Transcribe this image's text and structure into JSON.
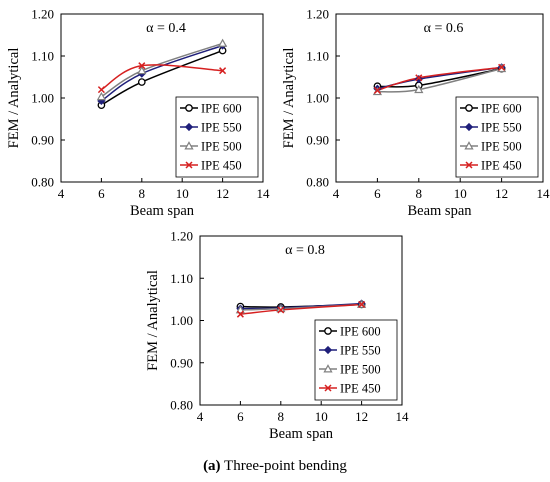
{
  "caption": {
    "label": "(a)",
    "text": "Three-point bending"
  },
  "chart_data": [
    {
      "type": "line",
      "title": "α = 0.4",
      "xlabel": "Beam span",
      "ylabel": "FEM / Analytical",
      "xlim": [
        4,
        14
      ],
      "ylim": [
        0.8,
        1.2
      ],
      "xticks": [
        4,
        6,
        8,
        10,
        12,
        14
      ],
      "yticks": [
        "0.80",
        "0.90",
        "1.00",
        "1.10",
        "1.20"
      ],
      "legend_position": "bottom-right",
      "series": [
        {
          "name": "IPE 600",
          "color": "#000000",
          "marker": "circle",
          "x": [
            6,
            8,
            12
          ],
          "y": [
            0.983,
            1.038,
            1.113
          ]
        },
        {
          "name": "IPE 550",
          "color": "#1f1f7a",
          "marker": "diamond",
          "x": [
            6,
            8,
            12
          ],
          "y": [
            0.993,
            1.058,
            1.125
          ]
        },
        {
          "name": "IPE 500",
          "color": "#808080",
          "marker": "triangle",
          "x": [
            6,
            8,
            12
          ],
          "y": [
            1.003,
            1.065,
            1.13
          ]
        },
        {
          "name": "IPE 450",
          "color": "#d62020",
          "marker": "x",
          "x": [
            6,
            8,
            12
          ],
          "y": [
            1.02,
            1.077,
            1.065
          ]
        }
      ]
    },
    {
      "type": "line",
      "title": "α = 0.6",
      "xlabel": "Beam span",
      "ylabel": "FEM / Analytical",
      "xlim": [
        4,
        14
      ],
      "ylim": [
        0.8,
        1.2
      ],
      "xticks": [
        4,
        6,
        8,
        10,
        12,
        14
      ],
      "yticks": [
        "0.80",
        "0.90",
        "1.00",
        "1.10",
        "1.20"
      ],
      "legend_position": "bottom-right",
      "series": [
        {
          "name": "IPE 600",
          "color": "#000000",
          "marker": "circle",
          "x": [
            6,
            8,
            12
          ],
          "y": [
            1.028,
            1.03,
            1.07
          ]
        },
        {
          "name": "IPE 550",
          "color": "#1f1f7a",
          "marker": "diamond",
          "x": [
            6,
            8,
            12
          ],
          "y": [
            1.022,
            1.045,
            1.073
          ]
        },
        {
          "name": "IPE 500",
          "color": "#808080",
          "marker": "triangle",
          "x": [
            6,
            8,
            12
          ],
          "y": [
            1.015,
            1.02,
            1.07
          ]
        },
        {
          "name": "IPE 450",
          "color": "#d62020",
          "marker": "x",
          "x": [
            6,
            8,
            12
          ],
          "y": [
            1.018,
            1.048,
            1.073
          ]
        }
      ]
    },
    {
      "type": "line",
      "title": "α = 0.8",
      "xlabel": "Beam span",
      "ylabel": "FEM / Analytical",
      "xlim": [
        4,
        14
      ],
      "ylim": [
        0.8,
        1.2
      ],
      "xticks": [
        4,
        6,
        8,
        10,
        12,
        14
      ],
      "yticks": [
        "0.80",
        "0.90",
        "1.00",
        "1.10",
        "1.20"
      ],
      "legend_position": "bottom-right",
      "series": [
        {
          "name": "IPE 600",
          "color": "#000000",
          "marker": "circle",
          "x": [
            6,
            8,
            12
          ],
          "y": [
            1.033,
            1.032,
            1.038
          ]
        },
        {
          "name": "IPE 550",
          "color": "#1f1f7a",
          "marker": "diamond",
          "x": [
            6,
            8,
            12
          ],
          "y": [
            1.028,
            1.03,
            1.04
          ]
        },
        {
          "name": "IPE 500",
          "color": "#808080",
          "marker": "triangle",
          "x": [
            6,
            8,
            12
          ],
          "y": [
            1.025,
            1.028,
            1.038
          ]
        },
        {
          "name": "IPE 450",
          "color": "#d62020",
          "marker": "x",
          "x": [
            6,
            8,
            12
          ],
          "y": [
            1.015,
            1.025,
            1.038
          ]
        }
      ]
    }
  ]
}
